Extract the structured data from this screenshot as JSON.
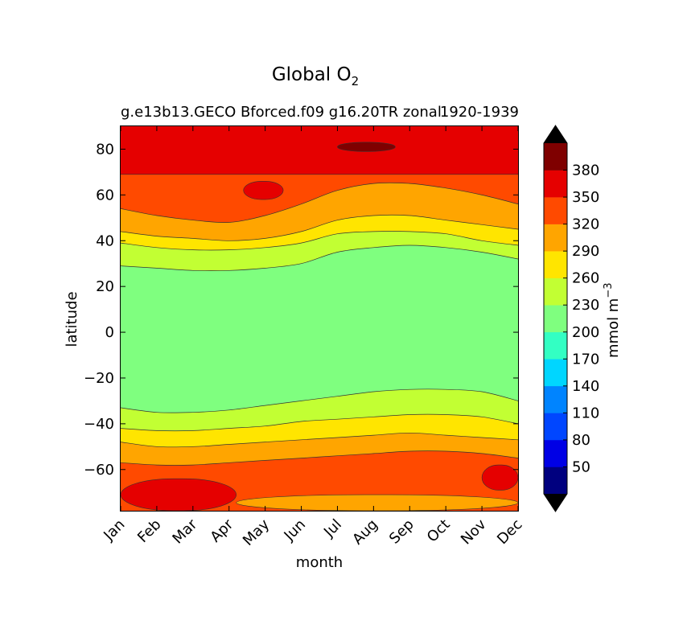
{
  "chart_data": {
    "type": "heatmap",
    "style": "filled-contour",
    "title": "Global O",
    "title_subscript": "2",
    "subtitle_left": "g.e13b13.GECO Bforced.f09 g16.20TR zonal",
    "subtitle_right": "1920-1939",
    "xlabel": "month",
    "ylabel": "latitude",
    "x_ticks": [
      "Jan",
      "Feb",
      "Mar",
      "Apr",
      "May",
      "Jun",
      "Jul",
      "Aug",
      "Sep",
      "Oct",
      "Nov",
      "Dec"
    ],
    "y_ticks": [
      80,
      60,
      40,
      20,
      0,
      -20,
      -40,
      -60
    ],
    "y_tick_labels": [
      "80",
      "60",
      "40",
      "20",
      "0",
      "−20",
      "−40",
      "−60"
    ],
    "ylim": [
      -78,
      90
    ],
    "colorbar": {
      "label": "mmol m",
      "label_superscript": "−3",
      "extend": "both",
      "levels": [
        20,
        50,
        80,
        110,
        140,
        170,
        200,
        230,
        260,
        290,
        320,
        350,
        380,
        410
      ],
      "tick_labels": [
        "50",
        "80",
        "110",
        "140",
        "170",
        "200",
        "230",
        "260",
        "290",
        "320",
        "350",
        "380"
      ],
      "colors": [
        "#00007f",
        "#0000e5",
        "#0046ff",
        "#0084ff",
        "#00d6ff",
        "#33ffc3",
        "#7fff7f",
        "#c2ff33",
        "#ffe500",
        "#ffa500",
        "#ff4a00",
        "#e50000",
        "#7f0000"
      ],
      "under_color": "#000000",
      "over_color": "#000000"
    },
    "band_boundaries_latitude": {
      "months": [
        1,
        2,
        3,
        4,
        5,
        6,
        7,
        8,
        9,
        10,
        11,
        12
      ],
      "north_350": [
        69,
        69,
        69,
        69,
        69,
        69,
        69,
        69,
        69,
        69,
        69,
        69
      ],
      "north_320": [
        54,
        51,
        49,
        48,
        51,
        56,
        62,
        65,
        65,
        63,
        60,
        56
      ],
      "north_290": [
        44,
        42,
        41,
        40,
        41,
        44,
        49,
        51,
        51,
        49,
        47,
        45
      ],
      "north_260": [
        39,
        37,
        36,
        36,
        37,
        39,
        43,
        44,
        44,
        43,
        40,
        38
      ],
      "north_230": [
        29,
        28,
        27,
        27,
        28,
        30,
        35,
        37,
        38,
        37,
        35,
        32
      ],
      "south_230": [
        -33,
        -35,
        -35,
        -34,
        -32,
        -30,
        -28,
        -26,
        -25,
        -25,
        -26,
        -30
      ],
      "south_260": [
        -42,
        -43,
        -43,
        -42,
        -41,
        -39,
        -38,
        -37,
        -36,
        -36,
        -37,
        -40
      ],
      "south_290": [
        -48,
        -50,
        -50,
        -49,
        -48,
        -47,
        -46,
        -45,
        -44,
        -45,
        -46,
        -47
      ],
      "south_320": [
        -57,
        -58,
        -58,
        -57,
        -56,
        -55,
        -54,
        -53,
        -52,
        -52,
        -53,
        -55
      ]
    },
    "patches": [
      {
        "level": 380,
        "month_range": [
          7.0,
          8.6
        ],
        "lat_range": [
          79,
          83
        ]
      },
      {
        "level": 350,
        "month_range": [
          4.4,
          5.5
        ],
        "lat_range": [
          58,
          66
        ]
      },
      {
        "level": 350,
        "month_range": [
          1.0,
          4.2
        ],
        "lat_range": [
          -78,
          -64
        ]
      },
      {
        "level": 350,
        "month_range": [
          11.0,
          12.0
        ],
        "lat_range": [
          -69,
          -58
        ]
      },
      {
        "level": 290,
        "month_range": [
          4.2,
          12.0
        ],
        "lat_range": [
          -78,
          -71
        ]
      }
    ]
  }
}
